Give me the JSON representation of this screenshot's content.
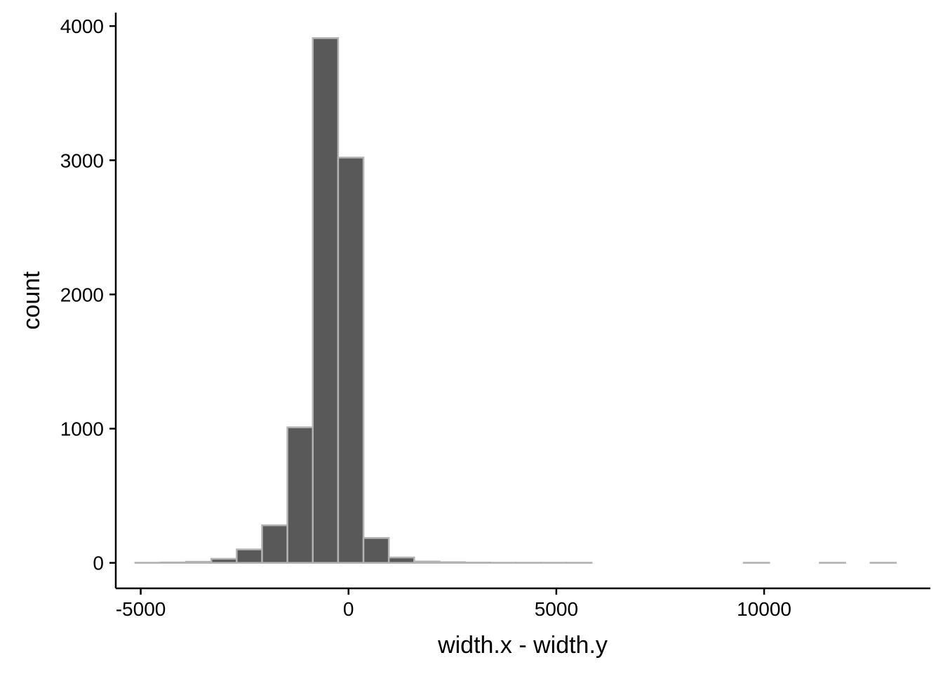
{
  "chart_data": {
    "type": "bar",
    "title": "",
    "xlabel": "width.x - width.y",
    "ylabel": "count",
    "xlim": [
      -5600,
      14000
    ],
    "ylim": [
      -190,
      4100
    ],
    "xticks": [
      -5000,
      0,
      5000,
      10000
    ],
    "yticks": [
      0,
      1000,
      2000,
      3000,
      4000
    ],
    "xtick_labels": [
      "-5000",
      "0",
      "5000",
      "10000"
    ],
    "ytick_labels": [
      "0",
      "1000",
      "2000",
      "3000",
      "4000"
    ],
    "bin_width": 610,
    "bins": [
      {
        "x0": -5130,
        "x1": -4520,
        "count": 1
      },
      {
        "x0": -4520,
        "x1": -3910,
        "count": 3
      },
      {
        "x0": -3910,
        "x1": -3300,
        "count": 8
      },
      {
        "x0": -3300,
        "x1": -2690,
        "count": 30
      },
      {
        "x0": -2690,
        "x1": -2080,
        "count": 100
      },
      {
        "x0": -2080,
        "x1": -1470,
        "count": 280
      },
      {
        "x0": -1470,
        "x1": -860,
        "count": 1010
      },
      {
        "x0": -860,
        "x1": -250,
        "count": 3910
      },
      {
        "x0": -250,
        "x1": 360,
        "count": 3020
      },
      {
        "x0": 360,
        "x1": 970,
        "count": 185
      },
      {
        "x0": 970,
        "x1": 1580,
        "count": 40
      },
      {
        "x0": 1580,
        "x1": 2190,
        "count": 10
      },
      {
        "x0": 2190,
        "x1": 2800,
        "count": 5
      },
      {
        "x0": 2800,
        "x1": 3410,
        "count": 2
      },
      {
        "x0": 3410,
        "x1": 4020,
        "count": 1
      },
      {
        "x0": 4020,
        "x1": 4630,
        "count": 1
      },
      {
        "x0": 4630,
        "x1": 5240,
        "count": 1
      },
      {
        "x0": 5240,
        "x1": 5850,
        "count": 1
      },
      {
        "x0": 5850,
        "x1": 6460,
        "count": 0
      },
      {
        "x0": 6460,
        "x1": 7070,
        "count": 0
      },
      {
        "x0": 7070,
        "x1": 7680,
        "count": 0
      },
      {
        "x0": 7680,
        "x1": 8290,
        "count": 0
      },
      {
        "x0": 8290,
        "x1": 8900,
        "count": 0
      },
      {
        "x0": 8900,
        "x1": 9510,
        "count": 0
      },
      {
        "x0": 9510,
        "x1": 10120,
        "count": 1
      },
      {
        "x0": 10120,
        "x1": 10730,
        "count": 0
      },
      {
        "x0": 10730,
        "x1": 11340,
        "count": 0
      },
      {
        "x0": 11340,
        "x1": 11950,
        "count": 1
      },
      {
        "x0": 11950,
        "x1": 12560,
        "count": 0
      },
      {
        "x0": 12560,
        "x1": 13170,
        "count": 1
      }
    ],
    "bar_fill": "#595959",
    "bar_stroke": "#b3b3b3",
    "axis_color": "#000000",
    "grid": false,
    "legend": "none"
  }
}
